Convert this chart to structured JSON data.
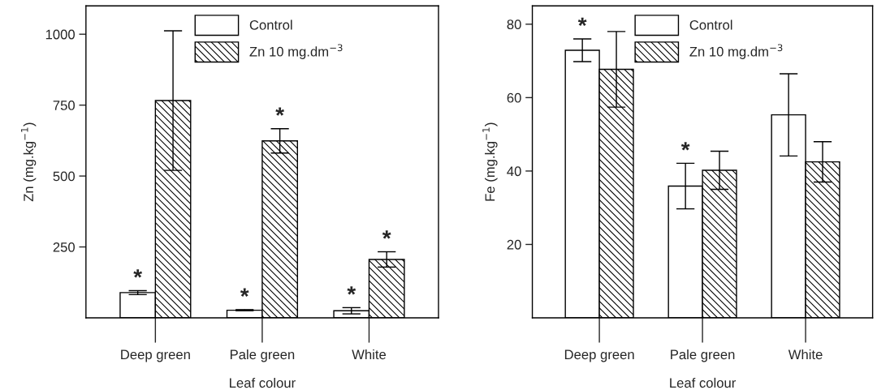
{
  "chart_data": [
    {
      "type": "bar",
      "xlabel": "Leaf colour",
      "ylabel": "Zn (mg.kg$^{−1}$)",
      "categories": [
        "Deep green",
        "Pale green",
        "White"
      ],
      "series": [
        {
          "name": "Control",
          "color": "#ffffff",
          "values": [
            89,
            27,
            25
          ],
          "errors": [
            7,
            2,
            11
          ]
        },
        {
          "name": "Zn 10 mg.dm$^{−3}$",
          "color": "#000000",
          "values": [
            766,
            624,
            206
          ],
          "errors": [
            246,
            43,
            27
          ]
        }
      ],
      "ylim": [
        0,
        1100
      ],
      "yticks": [
        250,
        500,
        750,
        1000
      ],
      "grid": false,
      "legend": "top",
      "annotations": [
        {
          "text": "*",
          "x": "Deep green",
          "y": 89
        },
        {
          "text": "*",
          "x": "Pale green",
          "y": 27
        },
        {
          "text": "*",
          "x": "Pale green",
          "y": 624
        },
        {
          "text": "*",
          "x": "White",
          "y": 25
        },
        {
          "text": "*",
          "x": "White",
          "y": 206
        }
      ]
    },
    {
      "type": "bar",
      "xlabel": "Leaf colour",
      "ylabel": "Fe (mg.kg$^{−1}$)",
      "categories": [
        "Deep green",
        "Pale green",
        "White"
      ],
      "series": [
        {
          "name": "Control",
          "color": "#ffffff",
          "values": [
            72.9,
            35.9,
            55.3
          ],
          "errors": [
            3.1,
            6.2,
            11.2
          ]
        },
        {
          "name": "Zn 10 mg.dm$^{−3}$",
          "color": "#000000",
          "values": [
            67.7,
            40.2,
            42.5
          ],
          "errors": [
            10.3,
            5.2,
            5.5
          ]
        }
      ],
      "ylim": [
        0,
        85
      ],
      "yticks": [
        20,
        40,
        60,
        80
      ],
      "grid": false,
      "legend": "top",
      "annotations": [
        {
          "text": "*",
          "x": "Deep green",
          "y": 72.9
        },
        {
          "text": "*",
          "x": "Pale green",
          "y": 35.9
        }
      ]
    }
  ]
}
